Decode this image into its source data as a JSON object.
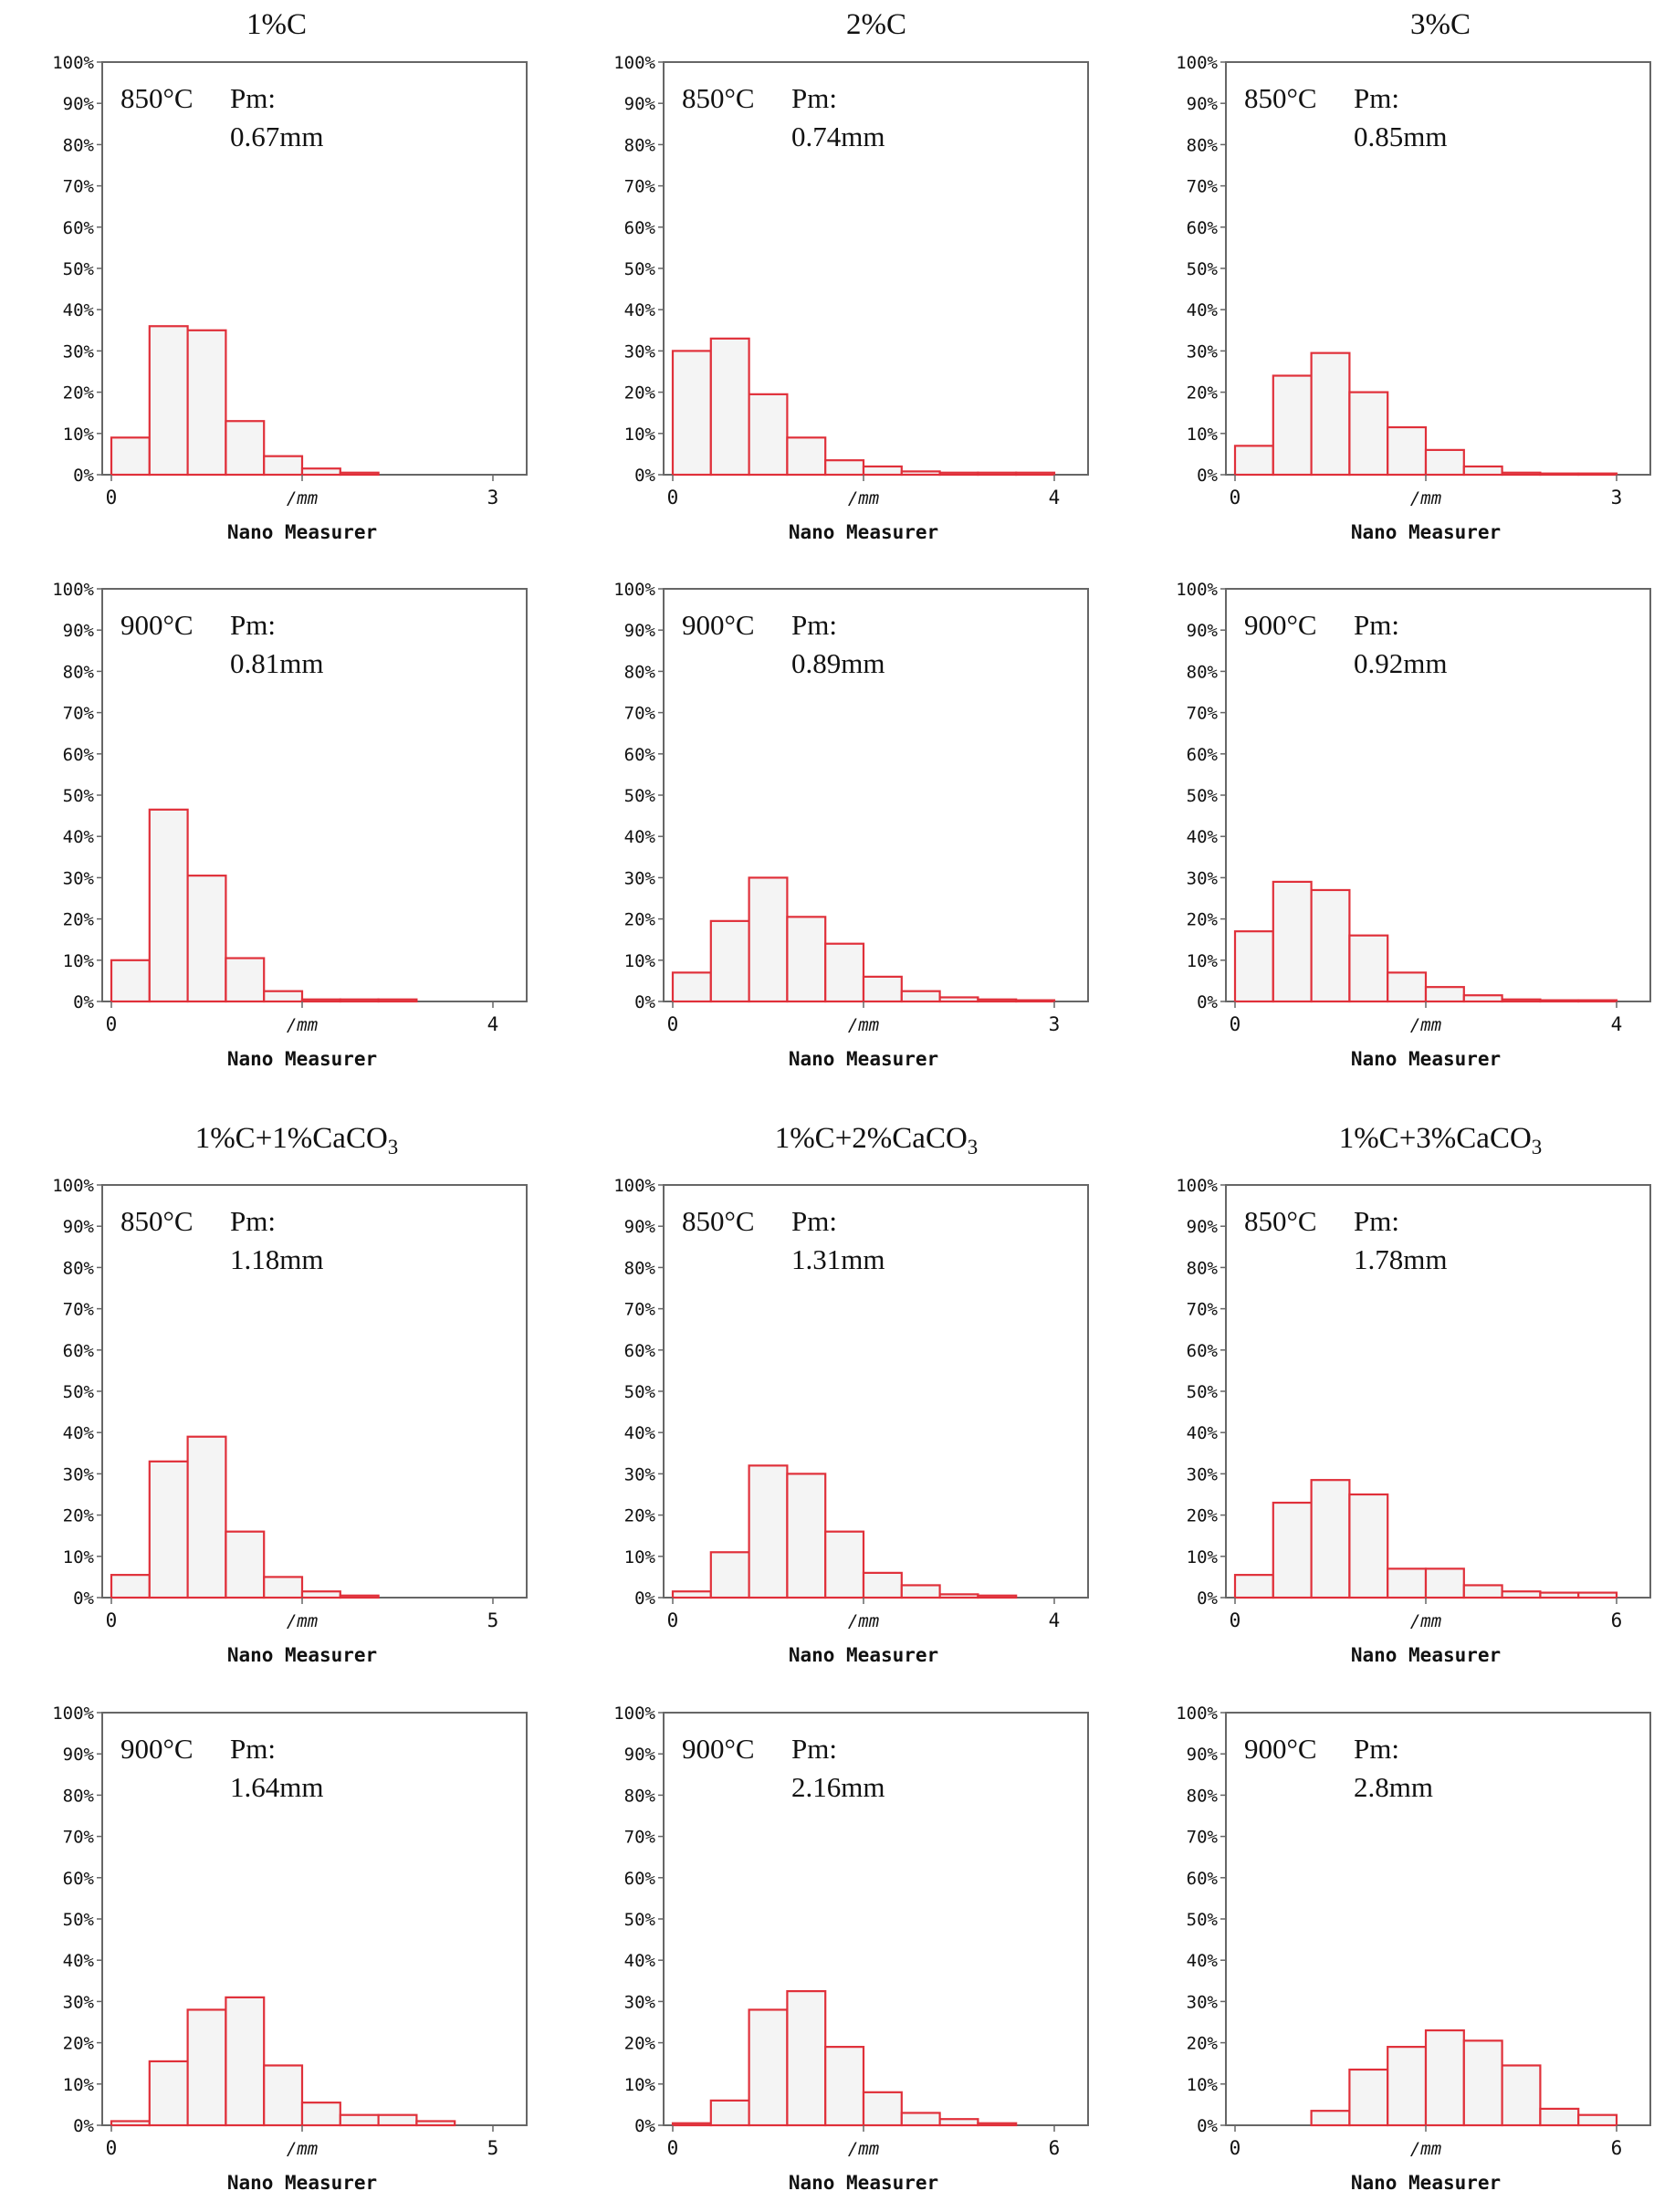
{
  "group_titles": {
    "top": [
      "1%C",
      "2%C",
      "3%C"
    ],
    "bottom": [
      {
        "main": "1%C+1%CaCO",
        "sub": "3"
      },
      {
        "main": "1%C+2%CaCO",
        "sub": "3"
      },
      {
        "main": "1%C+3%CaCO",
        "sub": "3"
      }
    ]
  },
  "y_ticks": [
    "0%",
    "10%",
    "20%",
    "30%",
    "40%",
    "50%",
    "60%",
    "70%",
    "80%",
    "90%",
    "100%"
  ],
  "colors": {
    "bar_stroke": "#e0303a",
    "bar_fill": "#f4f4f4",
    "axis": "#666666",
    "text": "#111111"
  },
  "chart_data": [
    {
      "type": "bar",
      "title": "1%C",
      "temperature": "850°C",
      "pm_label": "Pm:",
      "pm_value": "0.67mm",
      "xlabel": "Nano Measurer",
      "unit_label": "/mm",
      "x_ticks": [
        "0",
        "3"
      ],
      "xlim": [
        0,
        3
      ],
      "bin_start": 0,
      "bin_width": 0.3,
      "values": [
        9,
        36,
        35,
        13,
        4.5,
        1.5,
        0.5
      ],
      "ylim": [
        0,
        100
      ]
    },
    {
      "type": "bar",
      "title": "2%C",
      "temperature": "850°C",
      "pm_label": "Pm:",
      "pm_value": "0.74mm",
      "xlabel": "Nano Measurer",
      "unit_label": "/mm",
      "x_ticks": [
        "0",
        "4"
      ],
      "xlim": [
        0,
        4
      ],
      "bin_start": 0,
      "bin_width": 0.4,
      "values": [
        30,
        33,
        19.5,
        9,
        3.5,
        2,
        0.8,
        0.5,
        0.5,
        0.5
      ],
      "ylim": [
        0,
        100
      ]
    },
    {
      "type": "bar",
      "title": "3%C",
      "temperature": "850°C",
      "pm_label": "Pm:",
      "pm_value": "0.85mm",
      "xlabel": "Nano Measurer",
      "unit_label": "/mm",
      "x_ticks": [
        "0",
        "3"
      ],
      "xlim": [
        0,
        3
      ],
      "bin_start": 0,
      "bin_width": 0.3,
      "values": [
        7,
        24,
        29.5,
        20,
        11.5,
        6,
        2,
        0.5,
        0.3,
        0.3
      ],
      "ylim": [
        0,
        100
      ]
    },
    {
      "type": "bar",
      "temperature": "900°C",
      "pm_label": "Pm:",
      "pm_value": "0.81mm",
      "xlabel": "Nano Measurer",
      "unit_label": "/mm",
      "x_ticks": [
        "0",
        "4"
      ],
      "xlim": [
        0,
        4
      ],
      "bin_start": 0,
      "bin_width": 0.4,
      "values": [
        10,
        46.5,
        30.5,
        10.5,
        2.5,
        0.5,
        0.5,
        0.5
      ],
      "ylim": [
        0,
        100
      ]
    },
    {
      "type": "bar",
      "temperature": "900°C",
      "pm_label": "Pm:",
      "pm_value": "0.89mm",
      "xlabel": "Nano Measurer",
      "unit_label": "/mm",
      "x_ticks": [
        "0",
        "3"
      ],
      "xlim": [
        0,
        3
      ],
      "bin_start": 0,
      "bin_width": 0.3,
      "values": [
        7,
        19.5,
        30,
        20.5,
        14,
        6,
        2.5,
        1,
        0.5,
        0.3
      ],
      "ylim": [
        0,
        100
      ]
    },
    {
      "type": "bar",
      "temperature": "900°C",
      "pm_label": "Pm:",
      "pm_value": "0.92mm",
      "xlabel": "Nano Measurer",
      "unit_label": "/mm",
      "x_ticks": [
        "0",
        "4"
      ],
      "xlim": [
        0,
        4
      ],
      "bin_start": 0,
      "bin_width": 0.4,
      "values": [
        17,
        29,
        27,
        16,
        7,
        3.5,
        1.5,
        0.5,
        0.3,
        0.3
      ],
      "ylim": [
        0,
        100
      ]
    },
    {
      "type": "bar",
      "title": "1%C+1%CaCO3",
      "temperature": "850°C",
      "pm_label": "Pm:",
      "pm_value": "1.18mm",
      "xlabel": "Nano Measurer",
      "unit_label": "/mm",
      "x_ticks": [
        "0",
        "5"
      ],
      "xlim": [
        0,
        5
      ],
      "bin_start": 0,
      "bin_width": 0.5,
      "values": [
        5.5,
        33,
        39,
        16,
        5,
        1.5,
        0.5
      ],
      "ylim": [
        0,
        100
      ]
    },
    {
      "type": "bar",
      "title": "1%C+2%CaCO3",
      "temperature": "850°C",
      "pm_label": "Pm:",
      "pm_value": "1.31mm",
      "xlabel": "Nano Measurer",
      "unit_label": "/mm",
      "x_ticks": [
        "0",
        "4"
      ],
      "xlim": [
        0,
        4
      ],
      "bin_start": 0,
      "bin_width": 0.4,
      "values": [
        1.5,
        11,
        32,
        30,
        16,
        6,
        3,
        0.8,
        0.5
      ],
      "ylim": [
        0,
        100
      ]
    },
    {
      "type": "bar",
      "title": "1%C+3%CaCO3",
      "temperature": "850°C",
      "pm_label": "Pm:",
      "pm_value": "1.78mm",
      "xlabel": "Nano Measurer",
      "unit_label": "/mm",
      "x_ticks": [
        "0",
        "6"
      ],
      "xlim": [
        0,
        6
      ],
      "bin_start": 0,
      "bin_width": 0.6,
      "values": [
        5.5,
        23,
        28.5,
        25,
        7,
        7,
        3,
        1.5,
        1.2,
        1.2
      ],
      "ylim": [
        0,
        100
      ]
    },
    {
      "type": "bar",
      "temperature": "900°C",
      "pm_label": "Pm:",
      "pm_value": "1.64mm",
      "xlabel": "Nano Measurer",
      "unit_label": "/mm",
      "x_ticks": [
        "0",
        "5"
      ],
      "xlim": [
        0,
        5
      ],
      "bin_start": 0,
      "bin_width": 0.5,
      "values": [
        1,
        15.5,
        28,
        31,
        14.5,
        5.5,
        2.5,
        2.5,
        1
      ],
      "ylim": [
        0,
        100
      ]
    },
    {
      "type": "bar",
      "temperature": "900°C",
      "pm_label": "Pm:",
      "pm_value": "2.16mm",
      "xlabel": "Nano Measurer",
      "unit_label": "/mm",
      "x_ticks": [
        "0",
        "6"
      ],
      "xlim": [
        0,
        6
      ],
      "bin_start": 0,
      "bin_width": 0.6,
      "values": [
        0.5,
        6,
        28,
        32.5,
        19,
        8,
        3,
        1.5,
        0.5
      ],
      "ylim": [
        0,
        100
      ]
    },
    {
      "type": "bar",
      "temperature": "900°C",
      "pm_label": "Pm:",
      "pm_value": "2.8mm",
      "xlabel": "Nano Measurer",
      "unit_label": "/mm",
      "x_ticks": [
        "0",
        "6"
      ],
      "xlim": [
        0,
        6
      ],
      "bin_start": 1.2,
      "bin_width": 0.6,
      "values": [
        3.5,
        13.5,
        19,
        23,
        20.5,
        14.5,
        4,
        2.5
      ],
      "ylim": [
        0,
        100
      ]
    }
  ]
}
